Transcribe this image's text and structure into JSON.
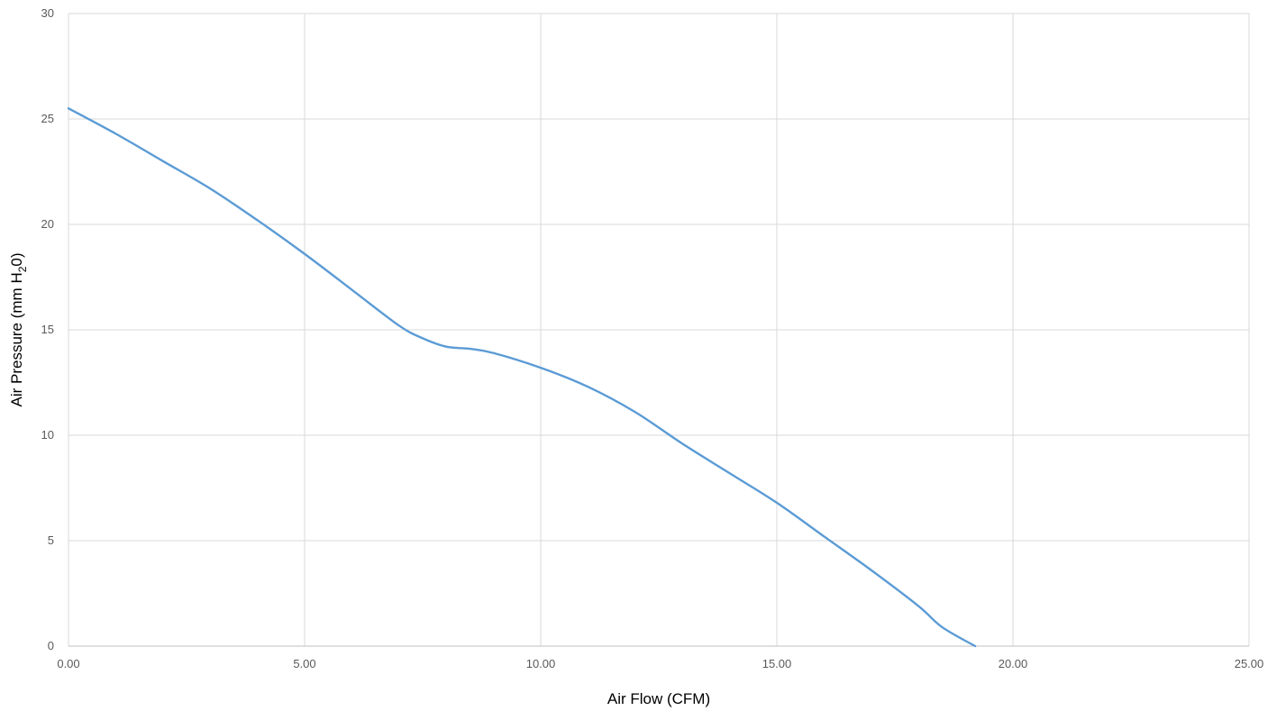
{
  "chart_data": {
    "type": "line",
    "title": "",
    "xlabel": "Air Flow (CFM)",
    "ylabel": {
      "prefix": "Air Pressure (mm H",
      "subscript": "2",
      "suffix": "0)"
    },
    "xlim": [
      0,
      25
    ],
    "ylim": [
      0,
      30
    ],
    "x_ticks": [
      {
        "value": 0,
        "label": "0.00"
      },
      {
        "value": 5,
        "label": "5.00"
      },
      {
        "value": 10,
        "label": "10.00"
      },
      {
        "value": 15,
        "label": "15.00"
      },
      {
        "value": 20,
        "label": "20.00"
      },
      {
        "value": 25,
        "label": "25.00"
      }
    ],
    "y_ticks": [
      {
        "value": 0,
        "label": "0"
      },
      {
        "value": 5,
        "label": "5"
      },
      {
        "value": 10,
        "label": "10"
      },
      {
        "value": 15,
        "label": "15"
      },
      {
        "value": 20,
        "label": "20"
      },
      {
        "value": 25,
        "label": "25"
      },
      {
        "value": 30,
        "label": "30"
      }
    ],
    "grid": true,
    "legend": "none",
    "series": [
      {
        "color": "#5B9BD5",
        "x": [
          0,
          1,
          2,
          3,
          4,
          5,
          6,
          7,
          7.5,
          8,
          8.5,
          9,
          10,
          11,
          12,
          13,
          14,
          15,
          16,
          17,
          18,
          18.5,
          19.2
        ],
        "y": [
          25.5,
          24.3,
          23.0,
          21.7,
          20.2,
          18.6,
          16.9,
          15.2,
          14.6,
          14.2,
          14.1,
          13.9,
          13.2,
          12.3,
          11.1,
          9.6,
          8.2,
          6.8,
          5.2,
          3.6,
          1.9,
          0.9,
          0.0
        ]
      }
    ],
    "colors": {
      "grid": "#D9D9D9",
      "tick_text": "#595959",
      "axis_title": "#000000"
    }
  }
}
